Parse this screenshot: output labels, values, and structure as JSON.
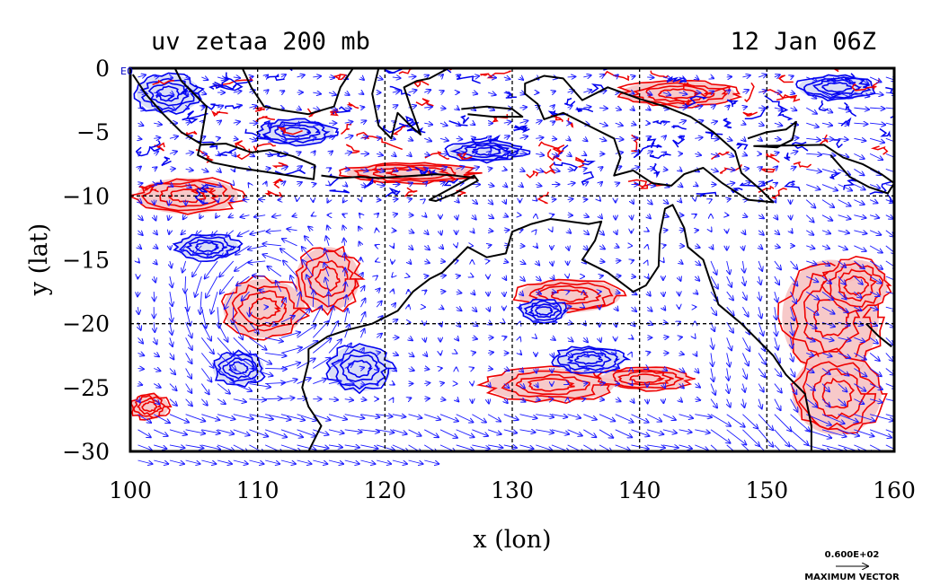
{
  "header": {
    "left_title": "uv zetaa 200 mb",
    "right_title": "12 Jan 06Z"
  },
  "corner_label": "E0",
  "legend": {
    "value_label": "0.600E+02",
    "vector_label": "MAXIMUM VECTOR"
  },
  "colors": {
    "positive_contour": "#ee0000",
    "positive_fill": "#f7c6c6",
    "negative_contour": "#0000ee",
    "negative_fill": "#d8dcf6",
    "vector": "#1a1aff",
    "coast": "#000000"
  },
  "chart_data": {
    "type": "contour+vector",
    "xlabel": "x (lon)",
    "ylabel": "y (lat)",
    "xlim": [
      100,
      160
    ],
    "ylim": [
      -30,
      0
    ],
    "xticks": [
      100,
      110,
      120,
      130,
      140,
      150,
      160
    ],
    "yticks": [
      0,
      -5,
      -10,
      -15,
      -20,
      -25,
      -30
    ],
    "xtick_labels": [
      "100",
      "110",
      "120",
      "130",
      "140",
      "150",
      "160"
    ],
    "ytick_labels": [
      "0",
      "−5",
      "−10",
      "−15",
      "−20",
      "−25",
      "−30"
    ],
    "grid_lon": [
      110,
      120,
      130,
      140,
      150
    ],
    "grid_lat": [
      -10,
      -20
    ],
    "grid_style": "dashed",
    "max_vector_magnitude": 60,
    "positive_regions": [
      {
        "lon": 110.5,
        "lat": -18.8,
        "rx": 3.2,
        "ry": 2.3
      },
      {
        "lon": 115.5,
        "lat": -16.5,
        "rx": 2.5,
        "ry": 2.5
      },
      {
        "lon": 104.5,
        "lat": -10.0,
        "rx": 4.0,
        "ry": 1.4
      },
      {
        "lon": 133.0,
        "lat": -24.8,
        "rx": 5.0,
        "ry": 1.3
      },
      {
        "lon": 140.5,
        "lat": -24.3,
        "rx": 3.5,
        "ry": 0.9
      },
      {
        "lon": 155.0,
        "lat": -19.5,
        "rx": 3.8,
        "ry": 4.5
      },
      {
        "lon": 155.5,
        "lat": -25.5,
        "rx": 3.5,
        "ry": 3.2
      },
      {
        "lon": 134.5,
        "lat": -17.8,
        "rx": 4.0,
        "ry": 1.3
      },
      {
        "lon": 122.0,
        "lat": -8.2,
        "rx": 5.0,
        "ry": 0.8
      },
      {
        "lon": 143.0,
        "lat": -2.0,
        "rx": 4.5,
        "ry": 1.0
      },
      {
        "lon": 157.0,
        "lat": -17.0,
        "rx": 2.5,
        "ry": 2.0
      },
      {
        "lon": 101.5,
        "lat": -26.5,
        "rx": 1.5,
        "ry": 1.0
      }
    ],
    "negative_regions": [
      {
        "lon": 108.5,
        "lat": -23.5,
        "rx": 2.0,
        "ry": 1.3
      },
      {
        "lon": 118.0,
        "lat": -23.5,
        "rx": 2.5,
        "ry": 1.8
      },
      {
        "lon": 136.0,
        "lat": -22.8,
        "rx": 2.8,
        "ry": 1.0
      },
      {
        "lon": 113.0,
        "lat": -5.0,
        "rx": 3.0,
        "ry": 1.0
      },
      {
        "lon": 103.0,
        "lat": -2.0,
        "rx": 2.5,
        "ry": 1.5
      },
      {
        "lon": 155.5,
        "lat": -1.5,
        "rx": 3.0,
        "ry": 1.0
      },
      {
        "lon": 106.0,
        "lat": -14.0,
        "rx": 2.5,
        "ry": 1.0
      },
      {
        "lon": 132.5,
        "lat": -19.0,
        "rx": 1.8,
        "ry": 0.9
      },
      {
        "lon": 128.0,
        "lat": -6.5,
        "rx": 3.0,
        "ry": 0.8
      }
    ],
    "coastlines": [
      {
        "name": "australia",
        "closed": true,
        "points": [
          [
            114.0,
            -22.0
          ],
          [
            115.5,
            -21.0
          ],
          [
            117.0,
            -20.5
          ],
          [
            119.0,
            -20.0
          ],
          [
            121.0,
            -19.0
          ],
          [
            122.2,
            -17.5
          ],
          [
            123.5,
            -16.5
          ],
          [
            124.5,
            -16.0
          ],
          [
            125.5,
            -15.0
          ],
          [
            126.5,
            -14.0
          ],
          [
            128.0,
            -14.8
          ],
          [
            129.5,
            -14.5
          ],
          [
            130.0,
            -12.8
          ],
          [
            131.5,
            -12.2
          ],
          [
            133.0,
            -11.8
          ],
          [
            134.5,
            -12.0
          ],
          [
            136.0,
            -12.2
          ],
          [
            137.0,
            -12.0
          ],
          [
            136.5,
            -13.5
          ],
          [
            135.5,
            -15.0
          ],
          [
            137.5,
            -16.0
          ],
          [
            139.5,
            -17.5
          ],
          [
            140.5,
            -17.0
          ],
          [
            141.5,
            -15.5
          ],
          [
            141.6,
            -13.0
          ],
          [
            142.0,
            -11.0
          ],
          [
            142.6,
            -10.7
          ],
          [
            143.5,
            -12.5
          ],
          [
            143.8,
            -14.0
          ],
          [
            145.0,
            -15.0
          ],
          [
            145.5,
            -16.5
          ],
          [
            146.2,
            -18.5
          ],
          [
            148.0,
            -20.0
          ],
          [
            149.5,
            -21.5
          ],
          [
            150.5,
            -22.5
          ],
          [
            151.5,
            -24.0
          ],
          [
            153.0,
            -25.5
          ],
          [
            153.5,
            -28.0
          ],
          [
            153.5,
            -30.0
          ],
          [
            114.0,
            -30.0
          ],
          [
            115.0,
            -28.0
          ],
          [
            114.0,
            -26.5
          ],
          [
            113.5,
            -25.0
          ],
          [
            114.0,
            -23.0
          ]
        ]
      },
      {
        "name": "new-guinea",
        "closed": true,
        "points": [
          [
            131.0,
            -1.2
          ],
          [
            132.5,
            -0.6
          ],
          [
            134.0,
            -0.8
          ],
          [
            135.5,
            -2.5
          ],
          [
            137.5,
            -1.5
          ],
          [
            140.0,
            -2.4
          ],
          [
            142.0,
            -3.0
          ],
          [
            144.0,
            -3.8
          ],
          [
            145.8,
            -5.0
          ],
          [
            147.5,
            -6.5
          ],
          [
            148.0,
            -8.2
          ],
          [
            149.5,
            -9.5
          ],
          [
            150.5,
            -10.5
          ],
          [
            148.5,
            -10.3
          ],
          [
            146.5,
            -9.0
          ],
          [
            145.0,
            -7.8
          ],
          [
            143.5,
            -8.3
          ],
          [
            142.5,
            -9.2
          ],
          [
            141.0,
            -9.0
          ],
          [
            139.5,
            -8.0
          ],
          [
            138.0,
            -8.4
          ],
          [
            138.5,
            -7.0
          ],
          [
            138.0,
            -5.5
          ],
          [
            136.0,
            -4.5
          ],
          [
            134.0,
            -3.5
          ],
          [
            132.5,
            -4.0
          ],
          [
            132.0,
            -2.8
          ],
          [
            131.0,
            -2.0
          ]
        ]
      },
      {
        "name": "java",
        "closed": true,
        "points": [
          [
            105.5,
            -6.0
          ],
          [
            107.5,
            -5.9
          ],
          [
            109.5,
            -6.6
          ],
          [
            111.0,
            -6.4
          ],
          [
            112.8,
            -6.9
          ],
          [
            114.5,
            -7.6
          ],
          [
            114.4,
            -8.7
          ],
          [
            112.5,
            -8.4
          ],
          [
            110.5,
            -8.1
          ],
          [
            108.5,
            -7.8
          ],
          [
            106.5,
            -7.4
          ],
          [
            105.3,
            -6.8
          ]
        ]
      },
      {
        "name": "sumatra",
        "closed": false,
        "points": [
          [
            100.2,
            -0.5
          ],
          [
            101.2,
            -2.0
          ],
          [
            102.5,
            -3.5
          ],
          [
            104.0,
            -5.0
          ],
          [
            105.5,
            -5.9
          ],
          [
            106.0,
            -3.0
          ],
          [
            105.0,
            -2.0
          ],
          [
            104.0,
            -1.0
          ],
          [
            103.5,
            0.0
          ]
        ]
      },
      {
        "name": "borneo",
        "closed": false,
        "points": [
          [
            108.8,
            0.0
          ],
          [
            109.5,
            -1.5
          ],
          [
            110.5,
            -3.0
          ],
          [
            112.0,
            -3.3
          ],
          [
            114.0,
            -3.6
          ],
          [
            116.0,
            -3.0
          ],
          [
            116.5,
            -1.5
          ],
          [
            117.5,
            0.0
          ]
        ]
      },
      {
        "name": "sulawesi",
        "closed": false,
        "points": [
          [
            119.5,
            0.0
          ],
          [
            119.0,
            -2.0
          ],
          [
            119.5,
            -4.5
          ],
          [
            120.5,
            -5.5
          ],
          [
            121.0,
            -3.5
          ],
          [
            122.0,
            -4.5
          ],
          [
            122.8,
            -5.2
          ],
          [
            122.0,
            -3.0
          ],
          [
            121.5,
            -1.5
          ],
          [
            122.5,
            -1.0
          ],
          [
            123.5,
            -0.8
          ],
          [
            125.0,
            0.0
          ]
        ]
      },
      {
        "name": "nusa-tenggara",
        "closed": false,
        "points": [
          [
            115.0,
            -8.4
          ],
          [
            116.5,
            -8.6
          ],
          [
            118.0,
            -8.5
          ],
          [
            119.5,
            -8.6
          ],
          [
            121.0,
            -8.5
          ],
          [
            122.5,
            -8.4
          ],
          [
            124.0,
            -8.3
          ],
          [
            125.5,
            -8.4
          ],
          [
            127.0,
            -8.6
          ]
        ]
      },
      {
        "name": "timor",
        "closed": true,
        "points": [
          [
            123.5,
            -10.3
          ],
          [
            125.0,
            -9.5
          ],
          [
            127.0,
            -8.4
          ],
          [
            127.3,
            -8.8
          ],
          [
            125.5,
            -9.8
          ],
          [
            124.0,
            -10.4
          ]
        ]
      },
      {
        "name": "seram-halmahera",
        "closed": false,
        "points": [
          [
            126.0,
            -3.2
          ],
          [
            128.0,
            -3.0
          ],
          [
            130.0,
            -3.2
          ],
          [
            130.8,
            -3.8
          ],
          [
            128.5,
            -3.8
          ],
          [
            126.5,
            -3.6
          ]
        ]
      },
      {
        "name": "new-britain-solomons",
        "closed": false,
        "points": [
          [
            148.5,
            -5.5
          ],
          [
            150.0,
            -5.0
          ],
          [
            151.5,
            -4.8
          ],
          [
            152.3,
            -4.2
          ],
          [
            152.0,
            -5.6
          ],
          [
            150.8,
            -6.2
          ],
          [
            149.0,
            -6.1
          ],
          [
            154.5,
            -6.0
          ],
          [
            156.0,
            -7.0
          ],
          [
            157.5,
            -7.5
          ],
          [
            159.0,
            -8.3
          ],
          [
            160.0,
            -9.0
          ],
          [
            159.5,
            -9.8
          ],
          [
            158.0,
            -9.3
          ],
          [
            156.5,
            -8.5
          ],
          [
            155.0,
            -6.8
          ]
        ]
      },
      {
        "name": "new-caledonia",
        "closed": false,
        "points": [
          [
            157.8,
            -20.0
          ],
          [
            158.8,
            -21.0
          ],
          [
            159.8,
            -21.8
          ]
        ]
      }
    ]
  }
}
